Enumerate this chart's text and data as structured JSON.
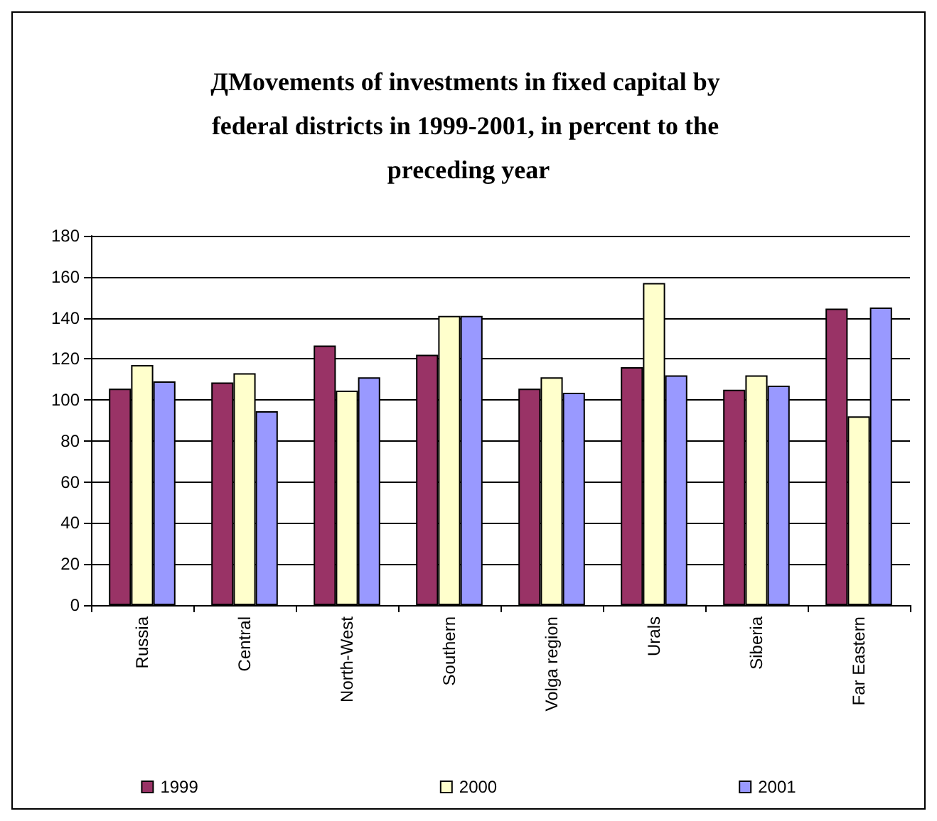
{
  "chart_data": {
    "type": "bar",
    "title": "ДMovements of investments in fixed capital by federal districts in 1999-2001, in percent to the preceding year",
    "categories": [
      "Russia",
      "Central",
      "North-West",
      "Southern",
      "Volga region",
      "Urals",
      "Siberia",
      "Far Eastern"
    ],
    "series": [
      {
        "name": "1999",
        "color": "#993366",
        "values": [
          105.5,
          108.5,
          126.5,
          122,
          105.5,
          116,
          105,
          144.5
        ]
      },
      {
        "name": "2000",
        "color": "#ffffcc",
        "values": [
          117,
          113,
          104.5,
          141,
          111,
          157,
          112,
          92
        ]
      },
      {
        "name": "2001",
        "color": "#9999ff",
        "values": [
          109,
          94.5,
          111,
          141,
          103.5,
          112,
          107,
          145
        ]
      }
    ],
    "ylim": [
      0,
      180
    ],
    "yticks": [
      0,
      20,
      40,
      60,
      80,
      100,
      120,
      140,
      160,
      180
    ],
    "grid": "y",
    "legend": "bottom"
  }
}
